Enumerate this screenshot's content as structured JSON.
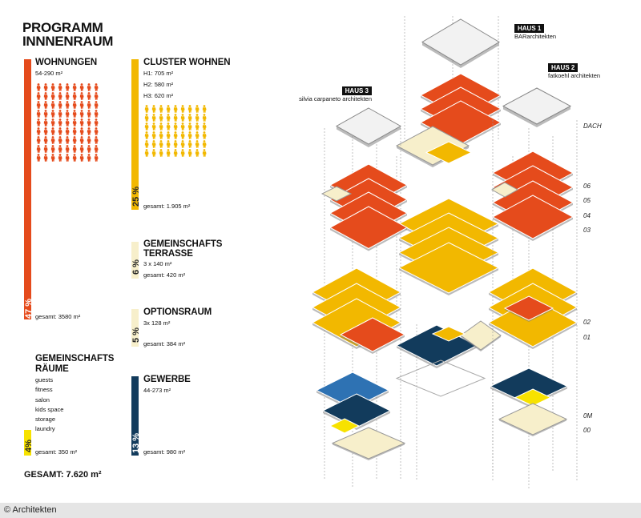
{
  "title": [
    "PROGRAMM",
    "INNNENRAUM"
  ],
  "colors": {
    "wohnen": "#e54b1c",
    "cluster": "#f2b800",
    "terrasse": "#f7efcb",
    "gewerbe": "#123b5c",
    "gemein": "#f7e200",
    "outline": "#9a9a9a"
  },
  "wohnungen": {
    "title": "WOHNUNGEN",
    "range": "54-290 m²",
    "percent": "47 %",
    "total": "gesamt: 3580 m²"
  },
  "cluster": {
    "title": "CLUSTER WOHNEN",
    "h1": "H1: 705 m²",
    "h2": "H2: 580 m²",
    "h3": "H3: 620 m²",
    "percent": "25 %",
    "total": "gesamt: 1.905 m²"
  },
  "terrasse": {
    "title1": "GEMEINSCHAFTS",
    "title2": "TERRASSE",
    "detail": "3 x 140 m²",
    "percent": "6 %",
    "total": "gesamt: 420 m²"
  },
  "optionsraum": {
    "title": "OPTIONSRAUM",
    "detail": "3x 128 m²",
    "percent": "5 %",
    "total": "gesamt: 384 m²"
  },
  "gewerbe": {
    "title": "GEWERBE",
    "range": "44-273 m²",
    "percent": "13 %",
    "total": "gesamt: 980 m²"
  },
  "gemeinschaftsraeume": {
    "title1": "GEMEINSCHAFTS",
    "title2": "RÄUME",
    "items": [
      "guests",
      "fitness",
      "salon",
      "kids space",
      "storage",
      "laundry"
    ],
    "percent": "4%",
    "total": "gesamt: 350 m²"
  },
  "gesamt": "GESAMT: 7.620 m²",
  "haus1": {
    "badge": "HAUS 1",
    "architect": "BARarchitekten"
  },
  "haus2": {
    "badge": "HAUS 2",
    "architect": "fatkoehl architekten"
  },
  "haus3": {
    "badge": "HAUS 3",
    "architect": "silvia carpaneto architekten"
  },
  "floors": [
    "DACH",
    "06",
    "05",
    "04",
    "03",
    "02",
    "01",
    "0M",
    "00"
  ],
  "credit": "© Architekten"
}
